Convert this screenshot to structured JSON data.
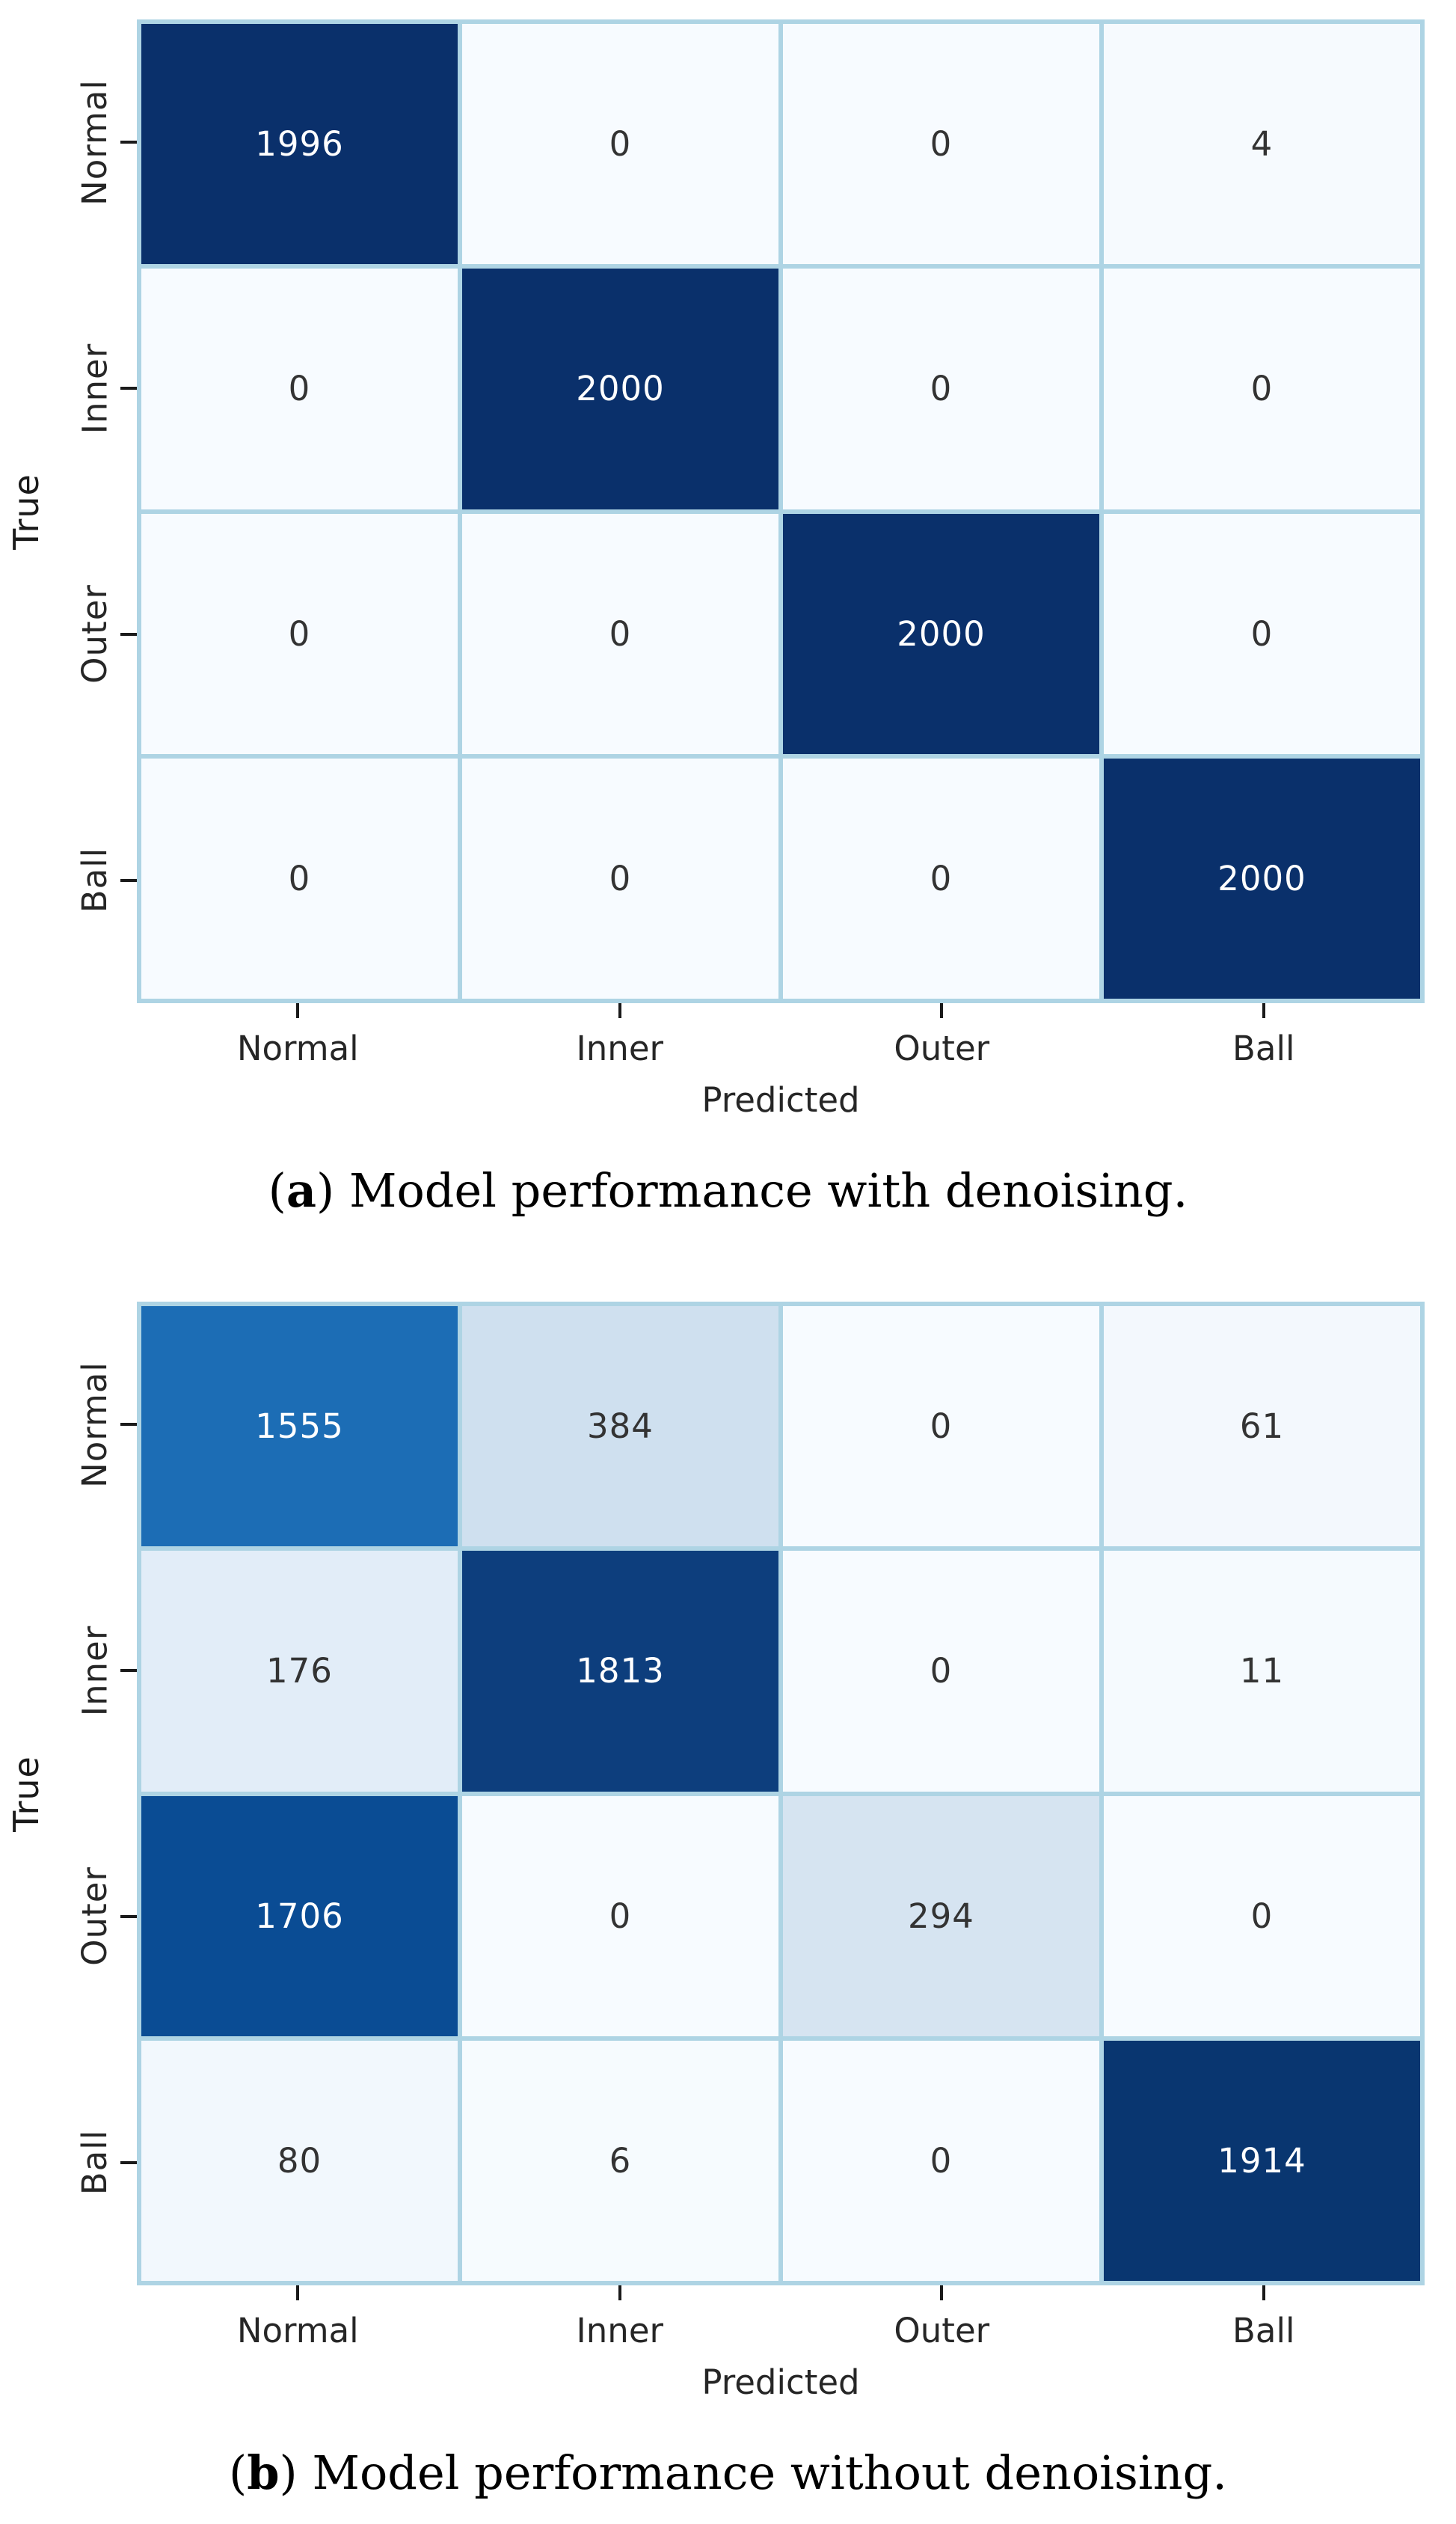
{
  "figures": [
    {
      "id": "a",
      "ylabel": "True",
      "xlabel": "Predicted",
      "caption_open": "(",
      "caption_letter": "a",
      "caption_close": ")",
      "caption_text": " Model performance with denoising.",
      "row_labels": [
        "Normal",
        "Inner",
        "Outer",
        "Ball"
      ],
      "col_labels": [
        "Normal",
        "Inner",
        "Outer",
        "Ball"
      ]
    },
    {
      "id": "b",
      "ylabel": "True",
      "xlabel": "Predicted",
      "caption_open": "(",
      "caption_letter": "b",
      "caption_close": ")",
      "caption_text": " Model performance without denoising.",
      "row_labels": [
        "Normal",
        "Inner",
        "Outer",
        "Ball"
      ],
      "col_labels": [
        "Normal",
        "Inner",
        "Outer",
        "Ball"
      ]
    }
  ],
  "chart_data": [
    {
      "type": "heatmap",
      "title": "Model performance with denoising",
      "xlabel": "Predicted",
      "ylabel": "True",
      "x_categories": [
        "Normal",
        "Inner",
        "Outer",
        "Ball"
      ],
      "y_categories": [
        "Normal",
        "Inner",
        "Outer",
        "Ball"
      ],
      "values": [
        [
          1996,
          0,
          0,
          4
        ],
        [
          0,
          2000,
          0,
          0
        ],
        [
          0,
          0,
          2000,
          0
        ],
        [
          0,
          0,
          0,
          2000
        ]
      ],
      "cell_colors": [
        [
          "#0a306b",
          "#f7fbff",
          "#f7fbff",
          "#f6fafe"
        ],
        [
          "#f7fbff",
          "#0a306b",
          "#f7fbff",
          "#f7fbff"
        ],
        [
          "#f7fbff",
          "#f7fbff",
          "#0a306b",
          "#f7fbff"
        ],
        [
          "#f7fbff",
          "#f7fbff",
          "#f7fbff",
          "#0a306b"
        ]
      ],
      "vmin": 0,
      "vmax": 2000,
      "colormap": "Blues",
      "gridline_color": "#aed4e4",
      "legend": "none"
    },
    {
      "type": "heatmap",
      "title": "Model performance without denoising",
      "xlabel": "Predicted",
      "ylabel": "True",
      "x_categories": [
        "Normal",
        "Inner",
        "Outer",
        "Ball"
      ],
      "y_categories": [
        "Normal",
        "Inner",
        "Outer",
        "Ball"
      ],
      "values": [
        [
          1555,
          384,
          0,
          61
        ],
        [
          176,
          1813,
          0,
          11
        ],
        [
          1706,
          0,
          294,
          0
        ],
        [
          80,
          6,
          0,
          1914
        ]
      ],
      "cell_colors": [
        [
          "#1c6db5",
          "#cfe0ef",
          "#f7fbff",
          "#f3f8fd"
        ],
        [
          "#e2edf8",
          "#0d3e7d",
          "#f7fbff",
          "#f5fafe"
        ],
        [
          "#0a4c94",
          "#f7fbff",
          "#d6e4f1",
          "#f7fbff"
        ],
        [
          "#f2f8fd",
          "#f6fbfe",
          "#f7fbff",
          "#093670"
        ]
      ],
      "vmin": 0,
      "vmax": 2000,
      "colormap": "Blues",
      "gridline_color": "#aed4e4",
      "legend": "none"
    }
  ],
  "colors": {
    "grid_line": "#aed4e4",
    "dark_cell_text": "#ffffff",
    "light_cell_text": "#333333",
    "tick_color": "#1a1a1a",
    "background": "#ffffff"
  }
}
